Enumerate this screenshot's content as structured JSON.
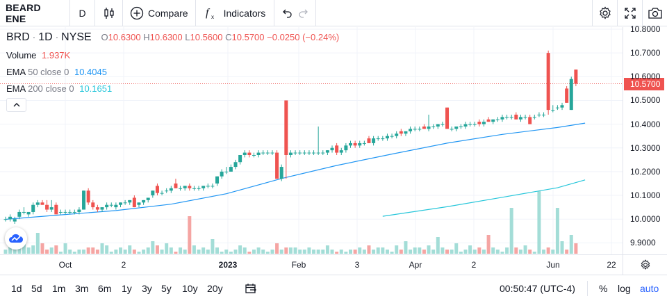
{
  "toolbar": {
    "symbol": "BEARD ENE",
    "interval": "D",
    "compare_label": "Compare",
    "indicators_label": "Indicators"
  },
  "legend": {
    "ticker": "BRD",
    "interval": "1D",
    "exchange": "NYSE",
    "open_label": "O",
    "open": "10.6300",
    "high_label": "H",
    "high": "10.6300",
    "low_label": "L",
    "low": "10.5600",
    "close_label": "C",
    "close": "10.5700",
    "change": "−0.0250 (−0.24%)",
    "volume_label": "Volume",
    "volume": "1.937K",
    "ema50_label": "EMA",
    "ema50_params": "50 close 0",
    "ema50_value": "10.4045",
    "ema200_label": "EMA",
    "ema200_params": "200 close 0",
    "ema200_value": "10.1651"
  },
  "price_scale": {
    "ticks": [
      "10.8000",
      "10.7000",
      "10.6000",
      "10.5000",
      "10.4000",
      "10.3000",
      "10.2000",
      "10.1000",
      "10.0000",
      "9.9000"
    ],
    "last_price": "10.5700"
  },
  "time_axis": {
    "labels": [
      "Oct",
      "2",
      "2023",
      "Feb",
      "3",
      "Apr",
      "2",
      "Jun",
      "22"
    ]
  },
  "bottom": {
    "ranges": [
      "1d",
      "5d",
      "1m",
      "3m",
      "6m",
      "1y",
      "3y",
      "5y",
      "10y",
      "20y"
    ],
    "clock": "00:50:47 (UTC-4)",
    "percent": "%",
    "log": "log",
    "auto": "auto"
  },
  "colors": {
    "up": "#26a69a",
    "down": "#ef5350",
    "ema50": "#2196f3",
    "ema200": "#26c6da",
    "accent": "#2962ff"
  },
  "chart_data": {
    "type": "candlestick",
    "ylim": [
      9.86,
      10.83
    ],
    "candles": [
      {
        "o": 10.0,
        "h": 10.01,
        "l": 9.99,
        "c": 10.0
      },
      {
        "o": 10.0,
        "h": 10.02,
        "l": 9.99,
        "c": 10.01
      },
      {
        "o": 9.99,
        "h": 10.01,
        "l": 9.98,
        "c": 10.0
      },
      {
        "o": 10.01,
        "h": 10.04,
        "l": 10.0,
        "c": 10.03
      },
      {
        "o": 10.03,
        "h": 10.05,
        "l": 10.02,
        "c": 10.03
      },
      {
        "o": 10.02,
        "h": 10.03,
        "l": 10.01,
        "c": 10.03
      },
      {
        "o": 10.03,
        "h": 10.07,
        "l": 10.02,
        "c": 10.06
      },
      {
        "o": 10.06,
        "h": 10.08,
        "l": 10.05,
        "c": 10.07
      },
      {
        "o": 10.07,
        "h": 10.08,
        "l": 10.06,
        "c": 10.06
      },
      {
        "o": 10.06,
        "h": 10.08,
        "l": 10.03,
        "c": 10.04
      },
      {
        "o": 10.04,
        "h": 10.08,
        "l": 10.03,
        "c": 10.05
      },
      {
        "o": 10.06,
        "h": 10.07,
        "l": 10.02,
        "c": 10.02
      },
      {
        "o": 10.03,
        "h": 10.04,
        "l": 10.02,
        "c": 10.03
      },
      {
        "o": 10.03,
        "h": 10.04,
        "l": 10.02,
        "c": 10.03
      },
      {
        "o": 10.03,
        "h": 10.04,
        "l": 10.02,
        "c": 10.03
      },
      {
        "o": 10.03,
        "h": 10.04,
        "l": 10.02,
        "c": 10.03
      },
      {
        "o": 10.03,
        "h": 10.05,
        "l": 10.02,
        "c": 10.04
      },
      {
        "o": 10.04,
        "h": 10.12,
        "l": 10.04,
        "c": 10.12
      },
      {
        "o": 10.12,
        "h": 10.13,
        "l": 10.06,
        "c": 10.07
      },
      {
        "o": 10.07,
        "h": 10.08,
        "l": 10.04,
        "c": 10.05
      },
      {
        "o": 10.05,
        "h": 10.06,
        "l": 10.03,
        "c": 10.04
      },
      {
        "o": 10.04,
        "h": 10.05,
        "l": 10.03,
        "c": 10.05
      },
      {
        "o": 10.05,
        "h": 10.07,
        "l": 10.04,
        "c": 10.06
      },
      {
        "o": 10.06,
        "h": 10.07,
        "l": 10.05,
        "c": 10.06
      },
      {
        "o": 10.05,
        "h": 10.07,
        "l": 10.04,
        "c": 10.06
      },
      {
        "o": 10.06,
        "h": 10.07,
        "l": 10.05,
        "c": 10.07
      },
      {
        "o": 10.07,
        "h": 10.08,
        "l": 10.06,
        "c": 10.07
      },
      {
        "o": 10.07,
        "h": 10.08,
        "l": 10.06,
        "c": 10.08
      },
      {
        "o": 10.09,
        "h": 10.1,
        "l": 10.05,
        "c": 10.05
      },
      {
        "o": 10.06,
        "h": 10.07,
        "l": 10.05,
        "c": 10.07
      },
      {
        "o": 10.07,
        "h": 10.08,
        "l": 10.06,
        "c": 10.08
      },
      {
        "o": 10.08,
        "h": 10.09,
        "l": 10.07,
        "c": 10.09
      },
      {
        "o": 10.1,
        "h": 10.12,
        "l": 10.09,
        "c": 10.12
      },
      {
        "o": 10.14,
        "h": 10.15,
        "l": 10.1,
        "c": 10.11
      },
      {
        "o": 10.11,
        "h": 10.12,
        "l": 10.1,
        "c": 10.11
      },
      {
        "o": 10.12,
        "h": 10.13,
        "l": 10.11,
        "c": 10.12
      },
      {
        "o": 10.12,
        "h": 10.14,
        "l": 10.11,
        "c": 10.13
      },
      {
        "o": 10.15,
        "h": 10.17,
        "l": 10.13,
        "c": 10.13
      },
      {
        "o": 10.13,
        "h": 10.14,
        "l": 10.12,
        "c": 10.13
      },
      {
        "o": 10.13,
        "h": 10.14,
        "l": 10.12,
        "c": 10.14
      },
      {
        "o": 10.14,
        "h": 10.15,
        "l": 10.12,
        "c": 10.13
      },
      {
        "o": 10.13,
        "h": 10.14,
        "l": 10.12,
        "c": 10.13
      },
      {
        "o": 10.13,
        "h": 10.14,
        "l": 10.12,
        "c": 10.13
      },
      {
        "o": 10.13,
        "h": 10.14,
        "l": 10.12,
        "c": 10.14
      },
      {
        "o": 10.14,
        "h": 10.15,
        "l": 10.13,
        "c": 10.14
      },
      {
        "o": 10.14,
        "h": 10.15,
        "l": 10.13,
        "c": 10.14
      },
      {
        "o": 10.15,
        "h": 10.18,
        "l": 10.14,
        "c": 10.18
      },
      {
        "o": 10.18,
        "h": 10.21,
        "l": 10.17,
        "c": 10.2
      },
      {
        "o": 10.2,
        "h": 10.22,
        "l": 10.19,
        "c": 10.2
      },
      {
        "o": 10.2,
        "h": 10.23,
        "l": 10.2,
        "c": 10.22
      },
      {
        "o": 10.22,
        "h": 10.25,
        "l": 10.21,
        "c": 10.24
      },
      {
        "o": 10.24,
        "h": 10.27,
        "l": 10.23,
        "c": 10.27
      },
      {
        "o": 10.27,
        "h": 10.29,
        "l": 10.26,
        "c": 10.28
      },
      {
        "o": 10.28,
        "h": 10.29,
        "l": 10.26,
        "c": 10.27
      },
      {
        "o": 10.27,
        "h": 10.28,
        "l": 10.26,
        "c": 10.27
      },
      {
        "o": 10.27,
        "h": 10.29,
        "l": 10.26,
        "c": 10.28
      },
      {
        "o": 10.28,
        "h": 10.29,
        "l": 10.27,
        "c": 10.28
      },
      {
        "o": 10.28,
        "h": 10.29,
        "l": 10.27,
        "c": 10.28
      },
      {
        "o": 10.28,
        "h": 10.29,
        "l": 10.27,
        "c": 10.28
      },
      {
        "o": 10.28,
        "h": 10.29,
        "l": 10.17,
        "c": 10.17
      },
      {
        "o": 10.17,
        "h": 10.23,
        "l": 10.16,
        "c": 10.22
      },
      {
        "o": 10.5,
        "h": 10.5,
        "l": 10.17,
        "c": 10.27
      },
      {
        "o": 10.27,
        "h": 10.29,
        "l": 10.26,
        "c": 10.28
      },
      {
        "o": 10.28,
        "h": 10.29,
        "l": 10.27,
        "c": 10.28
      },
      {
        "o": 10.28,
        "h": 10.29,
        "l": 10.27,
        "c": 10.28
      },
      {
        "o": 10.28,
        "h": 10.29,
        "l": 10.27,
        "c": 10.28
      },
      {
        "o": 10.28,
        "h": 10.29,
        "l": 10.27,
        "c": 10.28
      },
      {
        "o": 10.28,
        "h": 10.29,
        "l": 10.27,
        "c": 10.28
      },
      {
        "o": 10.28,
        "h": 10.39,
        "l": 10.27,
        "c": 10.28
      },
      {
        "o": 10.28,
        "h": 10.29,
        "l": 10.27,
        "c": 10.28
      },
      {
        "o": 10.28,
        "h": 10.29,
        "l": 10.27,
        "c": 10.29
      },
      {
        "o": 10.29,
        "h": 10.31,
        "l": 10.28,
        "c": 10.3
      },
      {
        "o": 10.31,
        "h": 10.32,
        "l": 10.27,
        "c": 10.28
      },
      {
        "o": 10.28,
        "h": 10.3,
        "l": 10.27,
        "c": 10.29
      },
      {
        "o": 10.29,
        "h": 10.32,
        "l": 10.28,
        "c": 10.31
      },
      {
        "o": 10.31,
        "h": 10.33,
        "l": 10.3,
        "c": 10.32
      },
      {
        "o": 10.32,
        "h": 10.33,
        "l": 10.3,
        "c": 10.31
      },
      {
        "o": 10.31,
        "h": 10.33,
        "l": 10.3,
        "c": 10.32
      },
      {
        "o": 10.32,
        "h": 10.33,
        "l": 10.31,
        "c": 10.32
      },
      {
        "o": 10.34,
        "h": 10.35,
        "l": 10.32,
        "c": 10.32
      },
      {
        "o": 10.32,
        "h": 10.35,
        "l": 10.31,
        "c": 10.34
      },
      {
        "o": 10.34,
        "h": 10.35,
        "l": 10.33,
        "c": 10.34
      },
      {
        "o": 10.34,
        "h": 10.35,
        "l": 10.33,
        "c": 10.34
      },
      {
        "o": 10.34,
        "h": 10.36,
        "l": 10.33,
        "c": 10.35
      },
      {
        "o": 10.35,
        "h": 10.36,
        "l": 10.34,
        "c": 10.35
      },
      {
        "o": 10.35,
        "h": 10.37,
        "l": 10.34,
        "c": 10.36
      },
      {
        "o": 10.37,
        "h": 10.38,
        "l": 10.35,
        "c": 10.36
      },
      {
        "o": 10.36,
        "h": 10.37,
        "l": 10.35,
        "c": 10.37
      },
      {
        "o": 10.37,
        "h": 10.39,
        "l": 10.36,
        "c": 10.38
      },
      {
        "o": 10.38,
        "h": 10.39,
        "l": 10.37,
        "c": 10.38
      },
      {
        "o": 10.38,
        "h": 10.39,
        "l": 10.37,
        "c": 10.38
      },
      {
        "o": 10.39,
        "h": 10.4,
        "l": 10.38,
        "c": 10.38
      },
      {
        "o": 10.38,
        "h": 10.44,
        "l": 10.37,
        "c": 10.39
      },
      {
        "o": 10.39,
        "h": 10.4,
        "l": 10.38,
        "c": 10.39
      },
      {
        "o": 10.39,
        "h": 10.4,
        "l": 10.38,
        "c": 10.4
      },
      {
        "o": 10.4,
        "h": 10.41,
        "l": 10.39,
        "c": 10.4
      },
      {
        "o": 10.47,
        "h": 10.47,
        "l": 10.38,
        "c": 10.38
      },
      {
        "o": 10.38,
        "h": 10.39,
        "l": 10.37,
        "c": 10.38
      },
      {
        "o": 10.38,
        "h": 10.39,
        "l": 10.37,
        "c": 10.39
      },
      {
        "o": 10.39,
        "h": 10.4,
        "l": 10.38,
        "c": 10.39
      },
      {
        "o": 10.39,
        "h": 10.41,
        "l": 10.38,
        "c": 10.4
      },
      {
        "o": 10.4,
        "h": 10.41,
        "l": 10.39,
        "c": 10.4
      },
      {
        "o": 10.4,
        "h": 10.41,
        "l": 10.39,
        "c": 10.4
      },
      {
        "o": 10.41,
        "h": 10.42,
        "l": 10.39,
        "c": 10.4
      },
      {
        "o": 10.4,
        "h": 10.42,
        "l": 10.39,
        "c": 10.41
      },
      {
        "o": 10.42,
        "h": 10.43,
        "l": 10.41,
        "c": 10.41
      },
      {
        "o": 10.41,
        "h": 10.42,
        "l": 10.4,
        "c": 10.42
      },
      {
        "o": 10.42,
        "h": 10.43,
        "l": 10.41,
        "c": 10.42
      },
      {
        "o": 10.42,
        "h": 10.44,
        "l": 10.41,
        "c": 10.43
      },
      {
        "o": 10.43,
        "h": 10.44,
        "l": 10.42,
        "c": 10.43
      },
      {
        "o": 10.43,
        "h": 10.44,
        "l": 10.42,
        "c": 10.43
      },
      {
        "o": 10.44,
        "h": 10.45,
        "l": 10.42,
        "c": 10.42
      },
      {
        "o": 10.42,
        "h": 10.44,
        "l": 10.41,
        "c": 10.43
      },
      {
        "o": 10.43,
        "h": 10.44,
        "l": 10.42,
        "c": 10.43
      },
      {
        "o": 10.43,
        "h": 10.44,
        "l": 10.4,
        "c": 10.4
      },
      {
        "o": 10.43,
        "h": 10.44,
        "l": 10.42,
        "c": 10.43
      },
      {
        "o": 10.44,
        "h": 10.45,
        "l": 10.43,
        "c": 10.44
      },
      {
        "o": 10.44,
        "h": 10.45,
        "l": 10.43,
        "c": 10.44
      },
      {
        "o": 10.7,
        "h": 10.71,
        "l": 10.44,
        "c": 10.46
      },
      {
        "o": 10.46,
        "h": 10.48,
        "l": 10.45,
        "c": 10.46
      },
      {
        "o": 10.47,
        "h": 10.48,
        "l": 10.46,
        "c": 10.47
      },
      {
        "o": 10.47,
        "h": 10.49,
        "l": 10.46,
        "c": 10.48
      },
      {
        "o": 10.55,
        "h": 10.56,
        "l": 10.49,
        "c": 10.49
      },
      {
        "o": 10.46,
        "h": 10.6,
        "l": 10.46,
        "c": 10.59
      },
      {
        "o": 10.63,
        "h": 10.63,
        "l": 10.56,
        "c": 10.57
      }
    ],
    "ema50": [
      {
        "i": 0,
        "v": 9.999
      },
      {
        "i": 12,
        "v": 10.018
      },
      {
        "i": 24,
        "v": 10.036
      },
      {
        "i": 36,
        "v": 10.063
      },
      {
        "i": 48,
        "v": 10.107
      },
      {
        "i": 60,
        "v": 10.171
      },
      {
        "i": 72,
        "v": 10.226
      },
      {
        "i": 84,
        "v": 10.274
      },
      {
        "i": 96,
        "v": 10.32
      },
      {
        "i": 108,
        "v": 10.357
      },
      {
        "i": 120,
        "v": 10.386
      },
      {
        "i": 126,
        "v": 10.4045
      }
    ],
    "ema200": [
      {
        "i": 82,
        "v": 10.012
      },
      {
        "i": 96,
        "v": 10.052
      },
      {
        "i": 108,
        "v": 10.092
      },
      {
        "i": 120,
        "v": 10.132
      },
      {
        "i": 126,
        "v": 10.1651
      }
    ],
    "volume": [
      2,
      6,
      2,
      3,
      8,
      3,
      4,
      10,
      5,
      2,
      3,
      4,
      1,
      5,
      2,
      1,
      2,
      2,
      3,
      3,
      2,
      5,
      4,
      1,
      2,
      3,
      2,
      4,
      2,
      1,
      2,
      3,
      6,
      4,
      2,
      5,
      3,
      1,
      3,
      2,
      18,
      4,
      2,
      3,
      2,
      7,
      3,
      1,
      2,
      1,
      2,
      4,
      3,
      1,
      2,
      3,
      2,
      1,
      2,
      5,
      2,
      3,
      3,
      3,
      2,
      2,
      3,
      2,
      2,
      2,
      4,
      2,
      1,
      2,
      1,
      2,
      2,
      3,
      2,
      4,
      2,
      3,
      3,
      2,
      1,
      4,
      2,
      6,
      2,
      3,
      3,
      2,
      4,
      2,
      8,
      3,
      2,
      2,
      5,
      1,
      2,
      4,
      2,
      3,
      2,
      9,
      3,
      2,
      1,
      3,
      22,
      3,
      2,
      4,
      2,
      1,
      30,
      2,
      3,
      2,
      22,
      6,
      2,
      9,
      5,
      2,
      1
    ]
  }
}
